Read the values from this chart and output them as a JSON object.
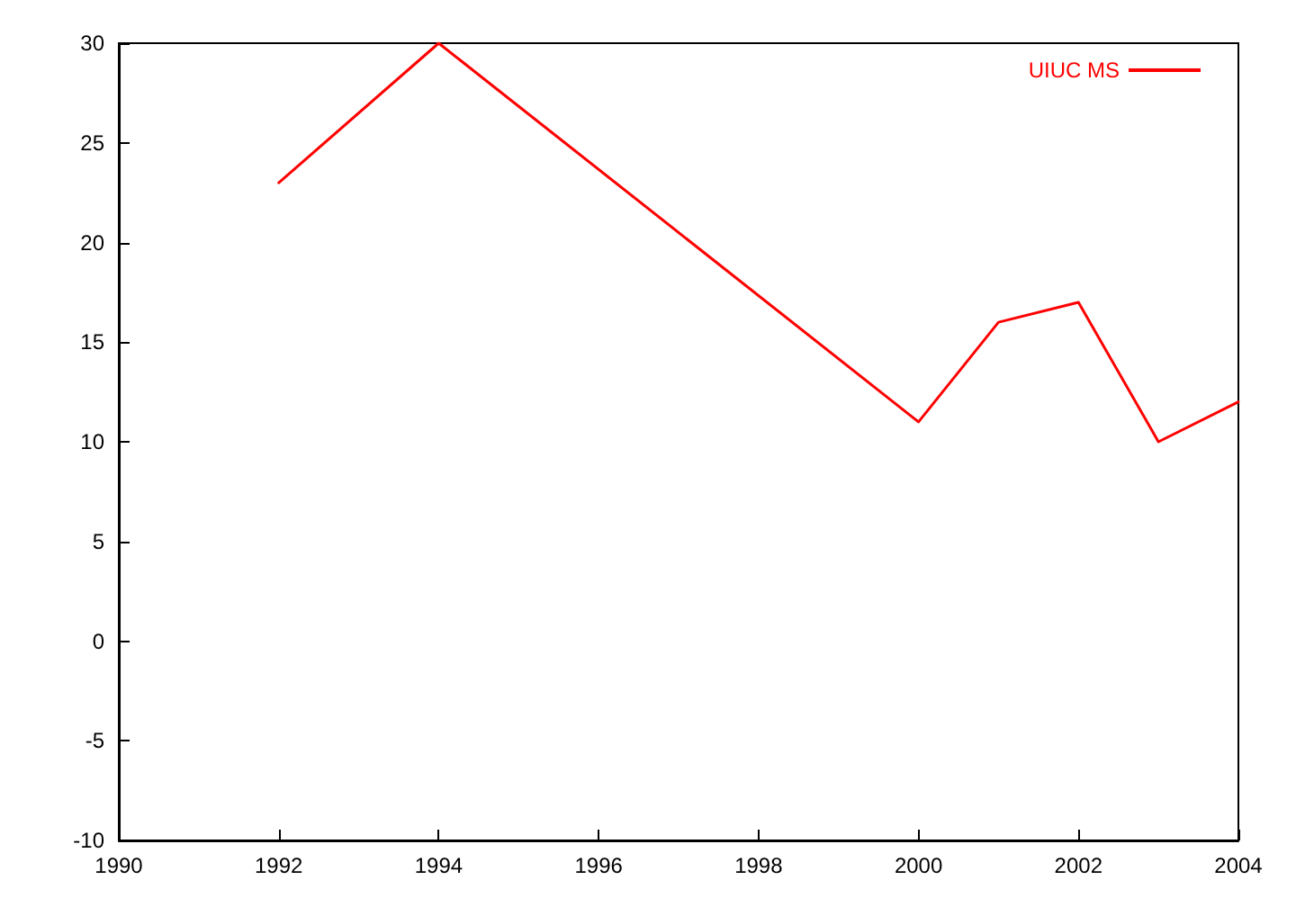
{
  "chart_data": {
    "type": "line",
    "x": [
      1992,
      1994,
      2000,
      2001,
      2002,
      2003,
      2004
    ],
    "series": [
      {
        "name": "UIUC MS",
        "color": "#ff0000",
        "values": [
          23,
          30,
          11,
          16,
          17,
          10,
          12
        ]
      }
    ],
    "xlim": [
      1990,
      2004
    ],
    "xticks": [
      1990,
      1992,
      1994,
      1996,
      1998,
      2000,
      2002,
      2004
    ],
    "ylim": [
      -10,
      30
    ],
    "yticks": [
      -10,
      -5,
      0,
      5,
      10,
      15,
      20,
      25,
      30
    ],
    "grid": false,
    "legend": "top right",
    "marker": "none",
    "line_style": "solid"
  }
}
